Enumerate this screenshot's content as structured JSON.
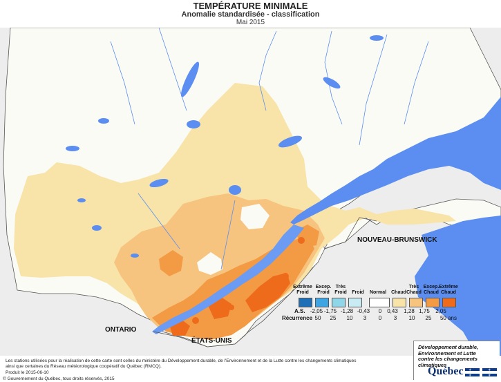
{
  "header": {
    "title": "TEMPÉRATURE MINIMALE",
    "subtitle": "Anomalie standardisée - classification",
    "period": "Mai 2015"
  },
  "map": {
    "labels": {
      "nb": "NOUVEAU-BRUNSWICK",
      "ontario": "ONTARIO",
      "us": "ÉTATS-UNIS"
    },
    "colors": {
      "land_outside": "#ededed",
      "normal": "#fbfbf5",
      "chaud": "#f8e3a9",
      "tres_chaud": "#f6c47f",
      "excep_chaud": "#f39a44",
      "extreme_chaud": "#ee6b1c",
      "water": "#5b8ef0",
      "river": "#6b9bf2",
      "border": "#555555"
    }
  },
  "legend": {
    "classes": [
      {
        "label": "Extrême Froid",
        "color": "#1e6fb5"
      },
      {
        "label": "Excep. Froid",
        "color": "#3ea4e2"
      },
      {
        "label": "Très Froid",
        "color": "#8fd6e8"
      },
      {
        "label": "Froid",
        "color": "#c9ecf4"
      },
      {
        "label": "Normal",
        "color": "#ffffff"
      },
      {
        "label": "Chaud",
        "color": "#f8e3a9"
      },
      {
        "label": "Très Chaud",
        "color": "#f6c47f"
      },
      {
        "label": "Excep. Chaud",
        "color": "#f39a44"
      },
      {
        "label": "Extrême Chaud",
        "color": "#ee6b1c"
      }
    ],
    "as_label": "A.S.",
    "as_values": [
      "-2,05",
      "-1,75",
      "-1,28",
      "-0,43",
      "0",
      "0,43",
      "1,28",
      "1,75",
      "2,05"
    ],
    "recurrence_label": "Récurrence",
    "recurrence_values": [
      "50",
      "25",
      "10",
      "3",
      "0",
      "3",
      "10",
      "25",
      "50 ans"
    ]
  },
  "footer": {
    "line1": "Les stations utilisées pour la réalisation de cette carte sont celles du ministère du Développement durable, de l'Environnement et de la Lutte contre les changements climatiques",
    "line2": "ainsi que certaines du Réseau météorologique coopératif du Québec (RMCQ).",
    "produced": "Produit le 2015-06-10",
    "copyright": "© Gouvernement du Québec, tous droits réservés, 2015"
  },
  "ministry": {
    "line1": "Développement durable,",
    "line2": "Environnement et Lutte",
    "line3": "contre les changements",
    "line4": "climatiques",
    "logo_word": "Québec"
  }
}
